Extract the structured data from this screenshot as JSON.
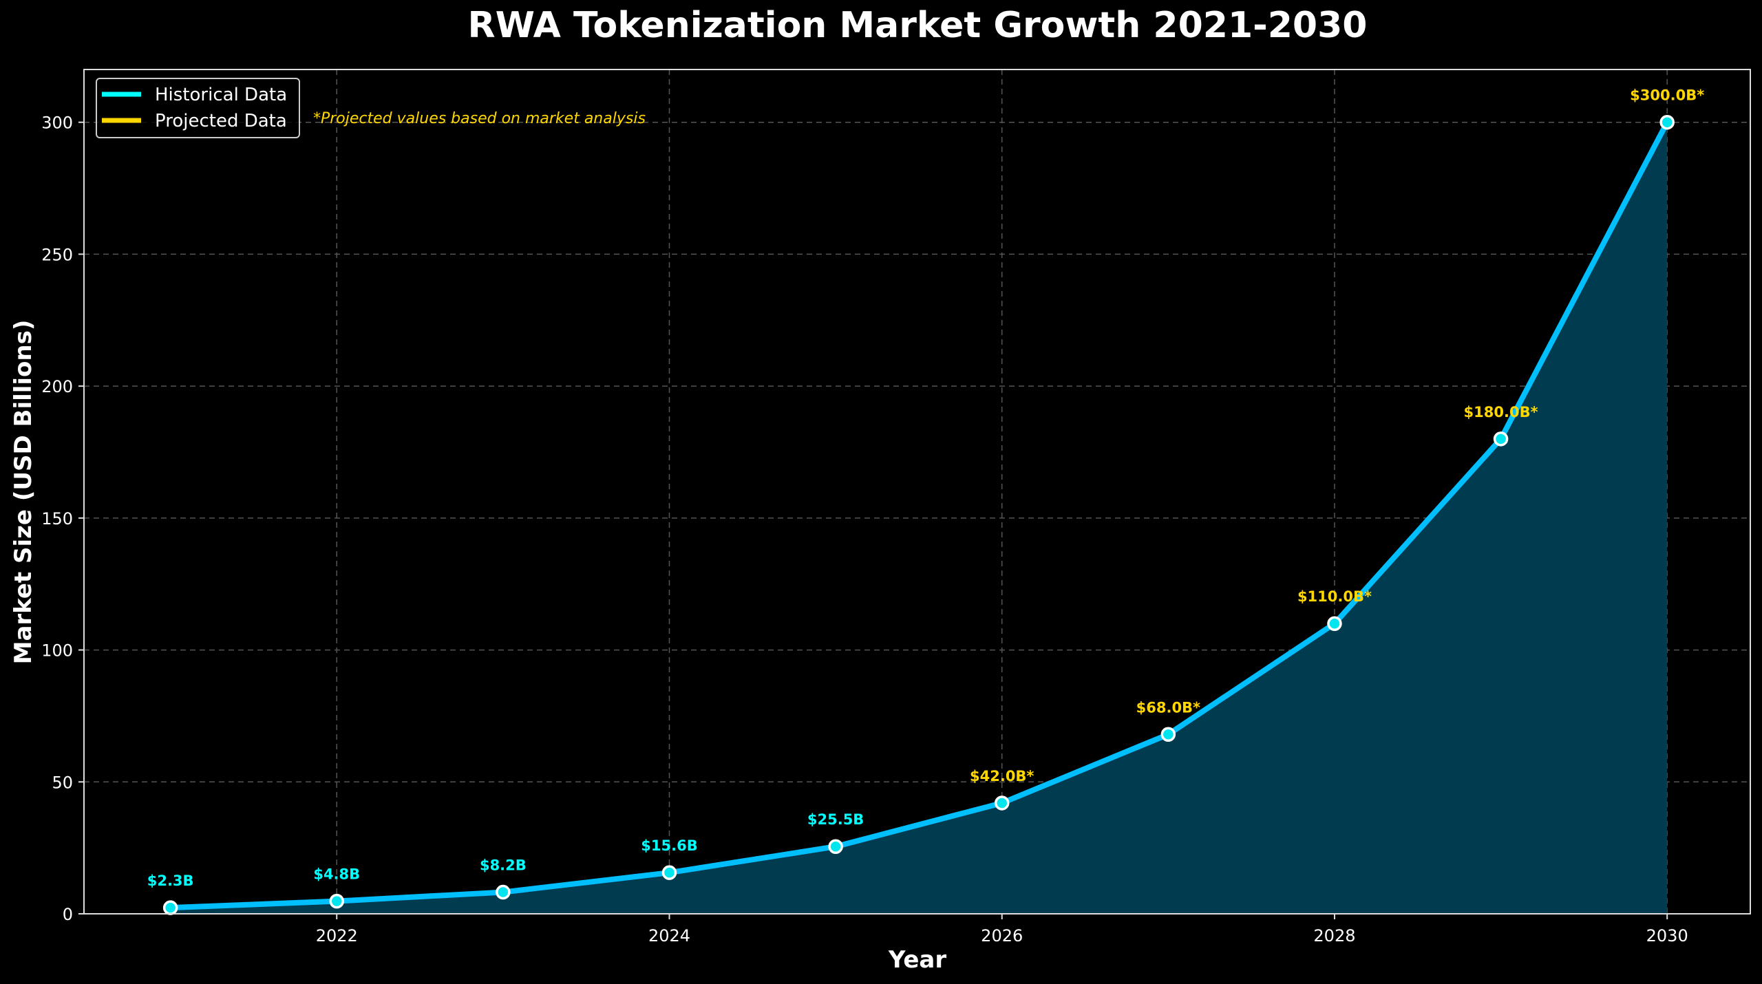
{
  "chart_data": {
    "type": "line",
    "title": "RWA Tokenization Market Growth 2021-2030",
    "xlabel": "Year",
    "ylabel": "Market Size (USD Billions)",
    "xlim": [
      2020.48,
      2030.5
    ],
    "ylim": [
      0,
      320
    ],
    "xticks": [
      2022,
      2024,
      2026,
      2028,
      2030
    ],
    "yticks": [
      0,
      50,
      100,
      150,
      200,
      250,
      300
    ],
    "grid": true,
    "area_fill": true,
    "legend_placement": "top-left",
    "x": [
      2021,
      2022,
      2023,
      2024,
      2025,
      2026,
      2027,
      2028,
      2029,
      2030
    ],
    "values": [
      2.3,
      4.8,
      8.2,
      15.6,
      25.5,
      42.0,
      68.0,
      110.0,
      180.0,
      300.0
    ],
    "labels": [
      "$2.3B",
      "$4.8B",
      "$8.2B",
      "$15.6B",
      "$25.5B",
      "$42.0B*",
      "$68.0B*",
      "$110.0B*",
      "$180.0B*",
      "$300.0B*"
    ],
    "projected": [
      false,
      false,
      false,
      false,
      false,
      true,
      true,
      true,
      true,
      true
    ],
    "series": [
      {
        "name": "Historical Data",
        "color": "#00FFFF"
      },
      {
        "name": "Projected Data",
        "color": "#FFD700"
      }
    ],
    "annotation": "*Projected values based on market analysis",
    "colors": {
      "line": "#00BFFF",
      "fill": "#003B4F",
      "marker": "#00E5EE",
      "historical_label": "#00FFFF",
      "projected_label": "#FFD700",
      "background": "#000000"
    }
  }
}
